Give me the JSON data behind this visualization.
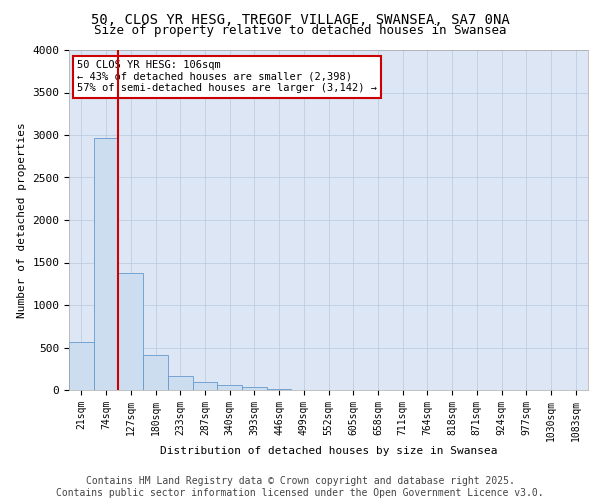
{
  "title_line1": "50, CLOS YR HESG, TREGOF VILLAGE, SWANSEA, SA7 0NA",
  "title_line2": "Size of property relative to detached houses in Swansea",
  "xlabel": "Distribution of detached houses by size in Swansea",
  "ylabel": "Number of detached properties",
  "categories": [
    "21sqm",
    "74sqm",
    "127sqm",
    "180sqm",
    "233sqm",
    "287sqm",
    "340sqm",
    "393sqm",
    "446sqm",
    "499sqm",
    "552sqm",
    "605sqm",
    "658sqm",
    "711sqm",
    "764sqm",
    "818sqm",
    "871sqm",
    "924sqm",
    "977sqm",
    "1030sqm",
    "1083sqm"
  ],
  "values": [
    560,
    2960,
    1380,
    415,
    160,
    95,
    55,
    40,
    15,
    5,
    0,
    0,
    0,
    0,
    0,
    0,
    0,
    0,
    0,
    0,
    0
  ],
  "bar_color": "#ccddf0",
  "bar_edge_color": "#6699cc",
  "grid_color": "#b8c8dc",
  "background_color": "#dce6f5",
  "vline_color": "#cc0000",
  "vline_position": 1.5,
  "annotation_text": "50 CLOS YR HESG: 106sqm\n← 43% of detached houses are smaller (2,398)\n57% of semi-detached houses are larger (3,142) →",
  "annotation_box_facecolor": "#ffffff",
  "annotation_box_edgecolor": "#cc0000",
  "ylim": [
    0,
    4000
  ],
  "yticks": [
    0,
    500,
    1000,
    1500,
    2000,
    2500,
    3000,
    3500,
    4000
  ],
  "footer_line1": "Contains HM Land Registry data © Crown copyright and database right 2025.",
  "footer_line2": "Contains public sector information licensed under the Open Government Licence v3.0.",
  "title_fontsize": 10,
  "subtitle_fontsize": 9,
  "axis_label_fontsize": 8,
  "tick_fontsize": 7,
  "footer_fontsize": 7,
  "annotation_fontsize": 7.5
}
